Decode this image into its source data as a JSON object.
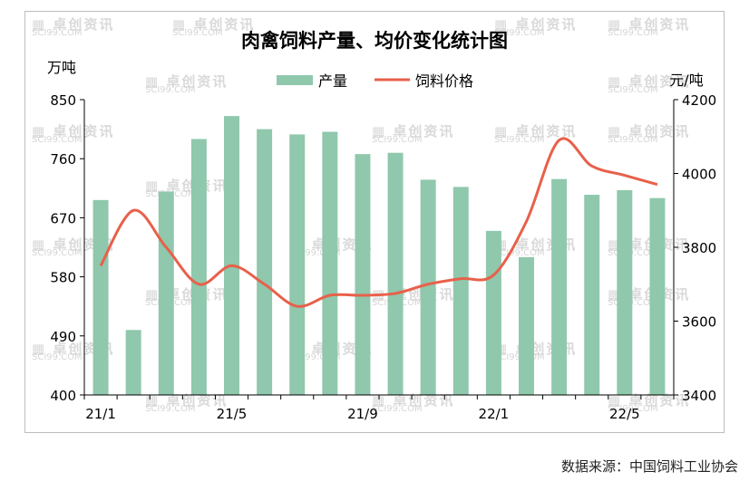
{
  "chart_data": {
    "type": "bar+line",
    "title": "肉禽饲料产量、均价变化统计图",
    "left_unit": "万吨",
    "right_unit": "元/吨",
    "legend": [
      "产量",
      "饲料价格"
    ],
    "legend_position": "top-center",
    "colors": {
      "bar": "#8fc8ac",
      "line": "#e8604a"
    },
    "x_labels": [
      "21/1",
      "21/5",
      "21/9",
      "22/1",
      "22/5"
    ],
    "x_label_month_index": [
      0,
      4,
      8,
      12,
      16
    ],
    "y_left": {
      "ticks": [
        400,
        490,
        580,
        670,
        760,
        850
      ],
      "range": [
        400,
        850
      ]
    },
    "y_right": {
      "ticks": [
        3400,
        3600,
        3800,
        4000,
        4200
      ],
      "range": [
        3400,
        4200
      ]
    },
    "series": [
      {
        "name": "产量",
        "axis": "left",
        "values": [
          697,
          499,
          710,
          790,
          825,
          805,
          797,
          801,
          767,
          769,
          728,
          717,
          650,
          610,
          729,
          705,
          712,
          700
        ]
      },
      {
        "name": "饲料价格",
        "axis": "right",
        "values": [
          3750,
          3900,
          3800,
          3700,
          3750,
          3700,
          3640,
          3670,
          3670,
          3675,
          3700,
          3715,
          3725,
          3870,
          4090,
          4020,
          3995,
          3970
        ]
      }
    ],
    "grid": false
  },
  "watermark": {
    "cn": "卓创资讯",
    "en": "SCI99.COM"
  },
  "source_text": "数据来源：中国饲料工业协会"
}
